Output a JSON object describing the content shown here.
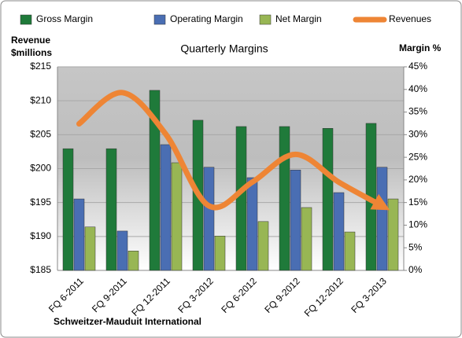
{
  "chart_data": {
    "type": "bar-line",
    "title": "Quarterly Margins",
    "ylabel": [
      "Revenue",
      "$millions"
    ],
    "y2label": "Margin %",
    "source": "Schweitzer-Mauduit International",
    "categories": [
      "FQ 6-2011",
      "FQ 9-2011",
      "FQ 12-2011",
      "FQ 3-2012",
      "FQ 6-2012",
      "FQ 9-2012",
      "FQ 12-2012",
      "FQ 3-2013"
    ],
    "series": [
      {
        "name": "Gross Margin",
        "type": "bar",
        "axis": "y2",
        "color": "#1f7a3a",
        "values": [
          26.9,
          26.9,
          39.8,
          33.2,
          31.8,
          31.8,
          31.4,
          32.5
        ]
      },
      {
        "name": "Operating Margin",
        "type": "bar",
        "axis": "y2",
        "color": "#4a6eb3",
        "values": [
          15.8,
          8.7,
          27.8,
          22.8,
          20.5,
          22.2,
          17.2,
          22.8
        ]
      },
      {
        "name": "Net Margin",
        "type": "bar",
        "axis": "y2",
        "color": "#98b654",
        "values": [
          9.6,
          4.3,
          23.8,
          7.6,
          10.8,
          13.9,
          8.5,
          15.8
        ]
      },
      {
        "name": "Revenues",
        "type": "line",
        "axis": "y",
        "color": "#ee8535",
        "values": [
          206.6,
          211.2,
          205.1,
          194.5,
          198.0,
          202.1,
          198.0,
          194.5
        ]
      }
    ],
    "ylim": [
      185,
      215
    ],
    "yticks": [
      {
        "value": 185,
        "label": "$185"
      },
      {
        "value": 190,
        "label": "$190"
      },
      {
        "value": 195,
        "label": "$195"
      },
      {
        "value": 200,
        "label": "$200"
      },
      {
        "value": 205,
        "label": "$205"
      },
      {
        "value": 210,
        "label": "$210"
      },
      {
        "value": 215,
        "label": "$215"
      }
    ],
    "y2lim": [
      0,
      45
    ],
    "y2ticks": [
      {
        "value": 0,
        "label": "0%"
      },
      {
        "value": 5,
        "label": "5%"
      },
      {
        "value": 10,
        "label": "10%"
      },
      {
        "value": 15,
        "label": "15%"
      },
      {
        "value": 20,
        "label": "20%"
      },
      {
        "value": 25,
        "label": "25%"
      },
      {
        "value": 30,
        "label": "30%"
      },
      {
        "value": 35,
        "label": "35%"
      },
      {
        "value": 40,
        "label": "40%"
      },
      {
        "value": 45,
        "label": "45%"
      }
    ],
    "grid": true
  }
}
